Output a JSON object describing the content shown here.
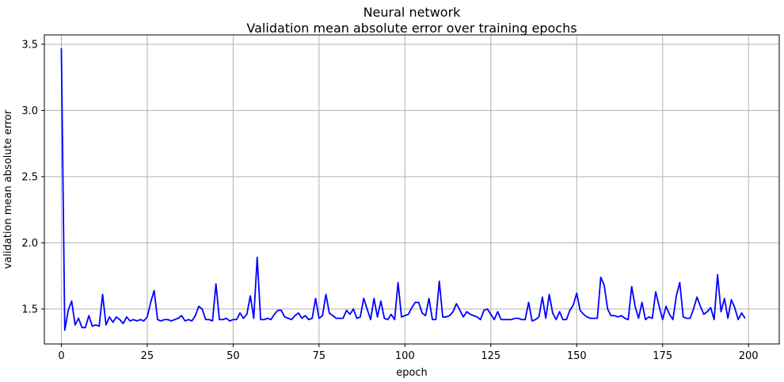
{
  "chart_data": {
    "type": "line",
    "title": "Neural network",
    "subtitle": "Validation mean absolute error over training epochs",
    "xlabel": "epoch",
    "ylabel": "validation mean absolute error",
    "xlim": [
      -4.95,
      208.95
    ],
    "ylim": [
      1.236,
      3.571
    ],
    "xticks": [
      0,
      25,
      50,
      75,
      100,
      125,
      150,
      175,
      200
    ],
    "xtick_labels": [
      "0",
      "25",
      "50",
      "75",
      "100",
      "125",
      "150",
      "175",
      "200"
    ],
    "yticks": [
      1.5,
      2.0,
      2.5,
      3.0,
      3.5
    ],
    "ytick_labels": [
      "1.5",
      "2.0",
      "2.5",
      "3.0",
      "3.5"
    ],
    "grid": true,
    "series": [
      {
        "color": "#0000ff",
        "x": [
          0,
          1,
          2,
          3,
          4,
          5,
          6,
          7,
          8,
          9,
          10,
          11,
          12,
          13,
          14,
          15,
          16,
          17,
          18,
          19,
          20,
          21,
          22,
          23,
          24,
          25,
          26,
          27,
          28,
          29,
          30,
          31,
          32,
          33,
          34,
          35,
          36,
          37,
          38,
          39,
          40,
          41,
          42,
          43,
          44,
          45,
          46,
          47,
          48,
          49,
          50,
          51,
          52,
          53,
          54,
          55,
          56,
          57,
          58,
          59,
          60,
          61,
          62,
          63,
          64,
          65,
          66,
          67,
          68,
          69,
          70,
          71,
          72,
          73,
          74,
          75,
          76,
          77,
          78,
          79,
          80,
          81,
          82,
          83,
          84,
          85,
          86,
          87,
          88,
          89,
          90,
          91,
          92,
          93,
          94,
          95,
          96,
          97,
          98,
          99,
          100,
          101,
          102,
          103,
          104,
          105,
          106,
          107,
          108,
          109,
          110,
          111,
          112,
          113,
          114,
          115,
          116,
          117,
          118,
          119,
          120,
          121,
          122,
          123,
          124,
          125,
          126,
          127,
          128,
          129,
          130,
          131,
          132,
          133,
          134,
          135,
          136,
          137,
          138,
          139,
          140,
          141,
          142,
          143,
          144,
          145,
          146,
          147,
          148,
          149,
          150,
          151,
          152,
          153,
          154,
          155,
          156,
          157,
          158,
          159,
          160,
          161,
          162,
          163,
          164,
          165,
          166,
          167,
          168,
          169,
          170,
          171,
          172,
          173,
          174,
          175,
          176,
          177,
          178,
          179,
          180,
          181,
          182,
          183,
          184,
          185,
          186,
          187,
          188,
          189,
          190,
          191,
          192,
          193,
          194,
          195,
          196,
          197,
          198,
          199
        ],
        "y": [
          3.47,
          1.34,
          1.49,
          1.56,
          1.38,
          1.43,
          1.36,
          1.36,
          1.45,
          1.37,
          1.38,
          1.37,
          1.61,
          1.38,
          1.44,
          1.4,
          1.44,
          1.42,
          1.39,
          1.44,
          1.41,
          1.42,
          1.41,
          1.42,
          1.41,
          1.44,
          1.55,
          1.64,
          1.42,
          1.41,
          1.42,
          1.42,
          1.41,
          1.42,
          1.43,
          1.45,
          1.41,
          1.42,
          1.41,
          1.45,
          1.52,
          1.5,
          1.42,
          1.42,
          1.41,
          1.69,
          1.42,
          1.42,
          1.43,
          1.41,
          1.42,
          1.42,
          1.47,
          1.43,
          1.46,
          1.6,
          1.43,
          1.89,
          1.42,
          1.42,
          1.43,
          1.42,
          1.46,
          1.49,
          1.49,
          1.44,
          1.43,
          1.42,
          1.45,
          1.47,
          1.43,
          1.45,
          1.42,
          1.43,
          1.58,
          1.43,
          1.45,
          1.61,
          1.47,
          1.45,
          1.43,
          1.43,
          1.43,
          1.49,
          1.46,
          1.5,
          1.43,
          1.44,
          1.58,
          1.5,
          1.42,
          1.58,
          1.44,
          1.56,
          1.43,
          1.42,
          1.46,
          1.42,
          1.7,
          1.44,
          1.45,
          1.46,
          1.51,
          1.55,
          1.55,
          1.47,
          1.45,
          1.58,
          1.42,
          1.42,
          1.71,
          1.44,
          1.44,
          1.45,
          1.48,
          1.54,
          1.49,
          1.44,
          1.48,
          1.46,
          1.45,
          1.44,
          1.42,
          1.49,
          1.5,
          1.46,
          1.42,
          1.48,
          1.42,
          1.42,
          1.42,
          1.42,
          1.43,
          1.43,
          1.42,
          1.42,
          1.55,
          1.41,
          1.42,
          1.44,
          1.59,
          1.43,
          1.61,
          1.47,
          1.42,
          1.48,
          1.42,
          1.42,
          1.49,
          1.53,
          1.62,
          1.49,
          1.46,
          1.44,
          1.43,
          1.43,
          1.43,
          1.74,
          1.68,
          1.5,
          1.45,
          1.45,
          1.44,
          1.45,
          1.43,
          1.42,
          1.67,
          1.52,
          1.43,
          1.55,
          1.42,
          1.44,
          1.43,
          1.63,
          1.52,
          1.42,
          1.52,
          1.46,
          1.42,
          1.6,
          1.7,
          1.44,
          1.43,
          1.43,
          1.5,
          1.59,
          1.52,
          1.46,
          1.48,
          1.51,
          1.42,
          1.76,
          1.48,
          1.58,
          1.43,
          1.57,
          1.51,
          1.42,
          1.47,
          1.43
        ]
      }
    ]
  }
}
